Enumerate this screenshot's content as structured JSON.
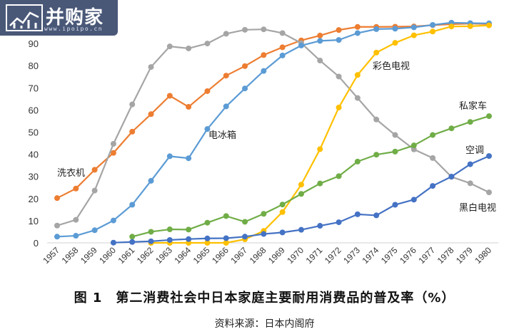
{
  "logo": {
    "brand": "并购家",
    "url": "www.ipoipo.cn"
  },
  "caption": "图 1　第二消费社会中日本家庭主要耐用消费品的普及率（%）",
  "source": "资料来源：日本内阁府",
  "chart_data": {
    "type": "line",
    "x": [
      1957,
      1958,
      1959,
      1960,
      1961,
      1962,
      1963,
      1964,
      1965,
      1966,
      1967,
      1968,
      1969,
      1970,
      1971,
      1972,
      1973,
      1974,
      1975,
      1976,
      1977,
      1978,
      1979,
      1980
    ],
    "ylim": [
      0,
      100
    ],
    "yticks": [
      0,
      10,
      20,
      30,
      40,
      50,
      60,
      70,
      80,
      90
    ],
    "grid": false,
    "series": [
      {
        "name": "洗衣机",
        "color": "#ed7d31",
        "values": [
          20.2,
          24.5,
          33,
          40.6,
          50.2,
          58.1,
          66.4,
          61.4,
          68.5,
          75.5,
          79.8,
          84.8,
          88.3,
          91.4,
          93.6,
          96.1,
          97.5,
          97.5,
          97.6,
          97.7,
          98.3,
          98.7,
          99,
          98.8
        ]
      },
      {
        "name": "",
        "color": "#a5a5a5",
        "values": [
          7.8,
          10.4,
          23.6,
          44.7,
          62.5,
          79.4,
          88.7,
          87.8,
          90,
          94.4,
          96.2,
          96.4,
          94.7,
          90.2,
          82.3,
          75.1,
          65.4,
          55.7,
          48.7,
          42.2,
          38.3,
          29.8,
          26.9,
          22.8
        ]
      },
      {
        "name": "电冰箱",
        "color": "#5b9bd5",
        "values": [
          2.8,
          3.2,
          5.7,
          10.1,
          17.2,
          28,
          39.1,
          38.2,
          51.4,
          61.6,
          69.7,
          77.6,
          84.6,
          89.1,
          91.2,
          91.6,
          94.7,
          96.5,
          96.7,
          97.3,
          98.4,
          99.4,
          99.2,
          99.1
        ]
      },
      {
        "name": "彩色电视",
        "color": "#ffc000",
        "start": 1962,
        "values": [
          0,
          0,
          0,
          0,
          0,
          0,
          0,
          0,
          0,
          0,
          1.6,
          5.4,
          13.9,
          26.3,
          42.3,
          61.1,
          75.8,
          85.9,
          90.3,
          93.7,
          95.4,
          97.7,
          97.8,
          98.2
        ]
      },
      {
        "name": "私家车",
        "color": "#70ad47",
        "start": 1961,
        "values": [
          0,
          0,
          0,
          0,
          2.8,
          5,
          6.1,
          6,
          9.1,
          12.1,
          9.5,
          13.1,
          17.3,
          22.1,
          26.8,
          30.1,
          36.7,
          39.8,
          41.2,
          44,
          48.7,
          51.7,
          54.6,
          57.2
        ]
      },
      {
        "name": "空调",
        "color": "#4472c4",
        "start": 1960,
        "values": [
          0,
          0,
          0,
          0.1,
          0.4,
          0.7,
          1.3,
          1.7,
          2,
          2.1,
          2.8,
          4,
          4.7,
          5.9,
          7.7,
          9.3,
          12.9,
          12.4,
          17.2,
          19.5,
          25.7,
          29.9,
          35.5,
          39.2
        ]
      }
    ],
    "labels": {
      "washer": "洗衣机",
      "fridge": "电冰箱",
      "colortv": "彩色电视",
      "car": "私家车",
      "ac": "空调",
      "bwtv": "黑白电视"
    }
  }
}
